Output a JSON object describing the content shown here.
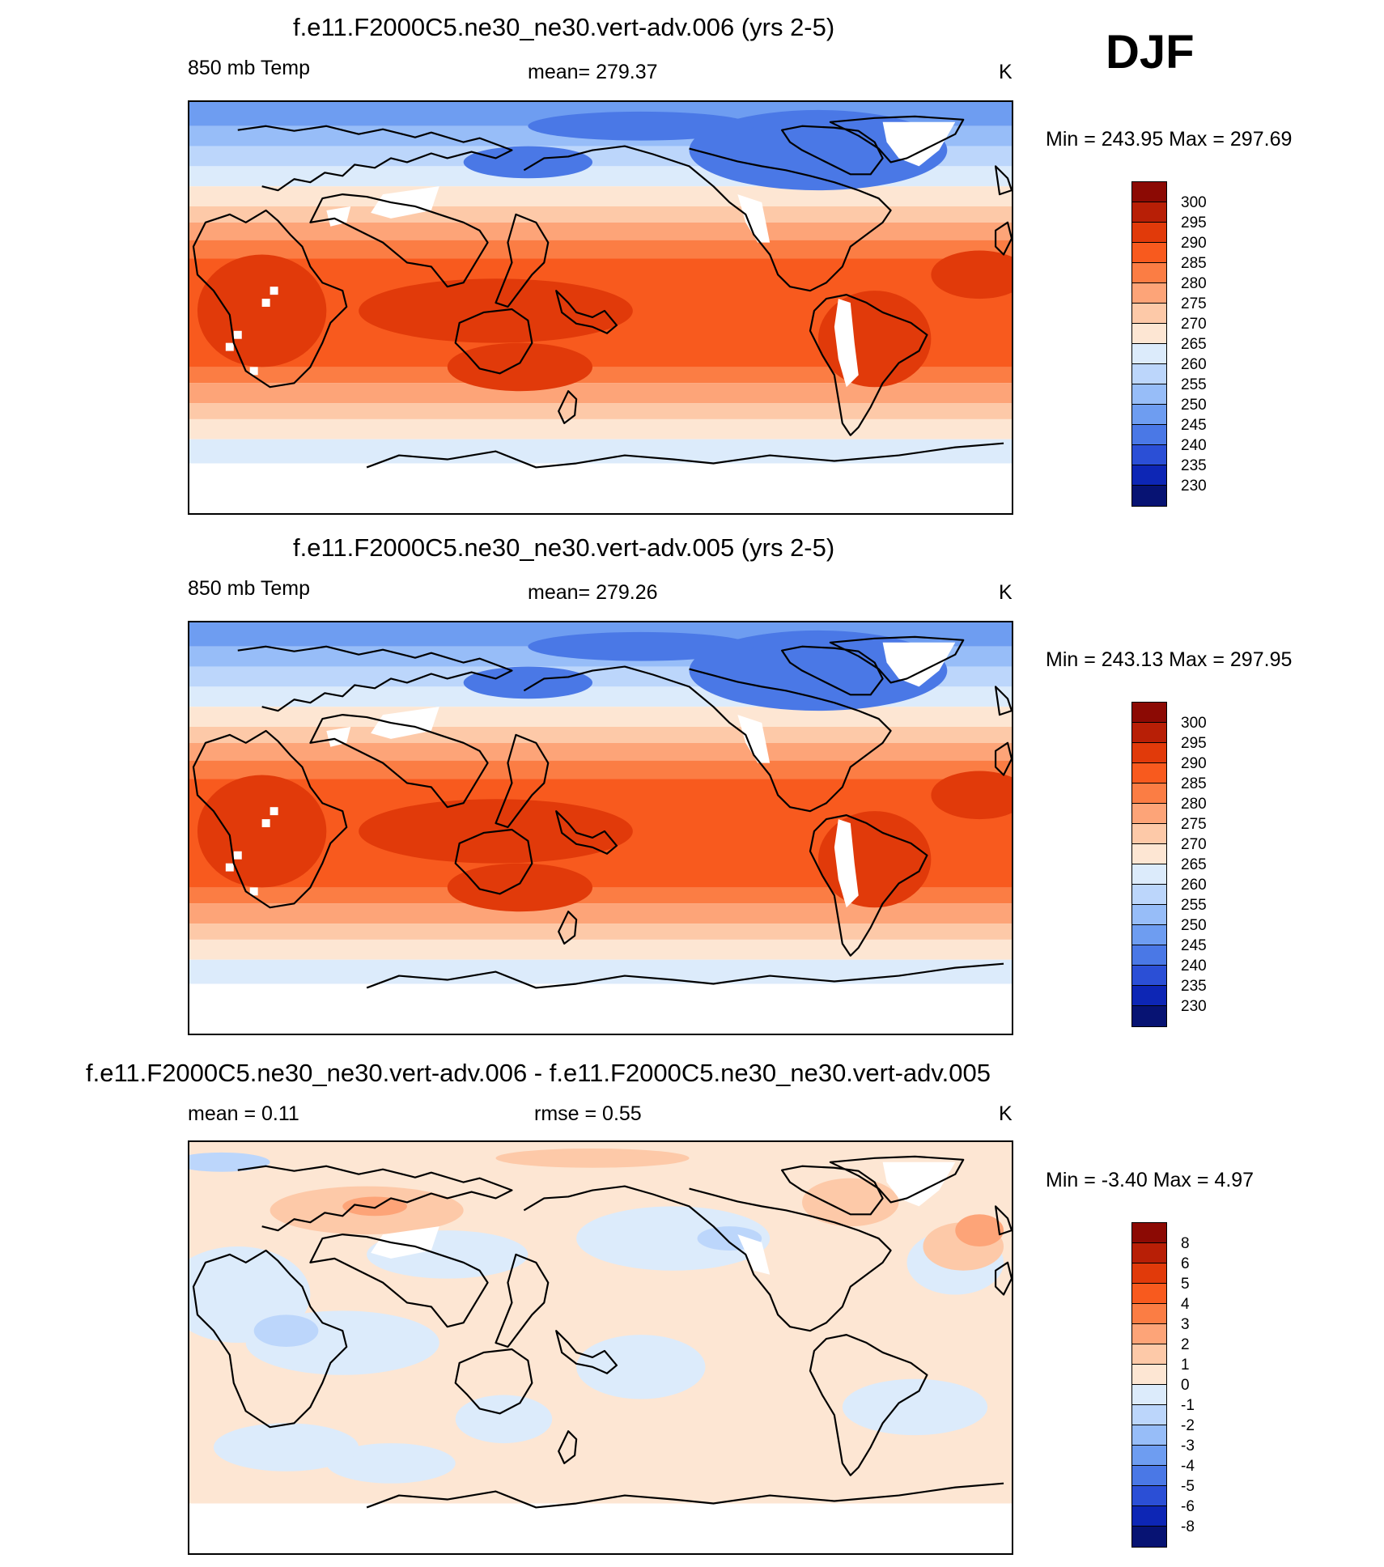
{
  "season": "DJF",
  "panels": [
    {
      "id": "p1",
      "title": "f.e11.F2000C5.ne30_ne30.vert-adv.006 (yrs 2-5)",
      "left_label": "850 mb Temp",
      "center_label": "mean= 279.37",
      "units": "K",
      "minmax": "Min = 243.95 Max = 297.69",
      "cbar_labels": [
        "300",
        "295",
        "290",
        "285",
        "280",
        "275",
        "270",
        "265",
        "260",
        "255",
        "250",
        "245",
        "240",
        "235",
        "230"
      ],
      "cbar_colors": [
        "#8c0a04",
        "#b81f06",
        "#e13a0a",
        "#f85a1e",
        "#fb7d44",
        "#fda478",
        "#fdc9a8",
        "#fde6d3",
        "#dcebfb",
        "#bcd6fb",
        "#97bdf8",
        "#6e9df1",
        "#4a78e6",
        "#2b4fd6",
        "#0d26b5",
        "#071373"
      ],
      "map_palette": "absolute"
    },
    {
      "id": "p2",
      "title": "f.e11.F2000C5.ne30_ne30.vert-adv.005 (yrs 2-5)",
      "left_label": "850 mb Temp",
      "center_label": "mean= 279.26",
      "units": "K",
      "minmax": "Min = 243.13 Max = 297.95",
      "cbar_labels": [
        "300",
        "295",
        "290",
        "285",
        "280",
        "275",
        "270",
        "265",
        "260",
        "255",
        "250",
        "245",
        "240",
        "235",
        "230"
      ],
      "cbar_colors": [
        "#8c0a04",
        "#b81f06",
        "#e13a0a",
        "#f85a1e",
        "#fb7d44",
        "#fda478",
        "#fdc9a8",
        "#fde6d3",
        "#dcebfb",
        "#bcd6fb",
        "#97bdf8",
        "#6e9df1",
        "#4a78e6",
        "#2b4fd6",
        "#0d26b5",
        "#071373"
      ],
      "map_palette": "absolute"
    },
    {
      "id": "p3",
      "title": "f.e11.F2000C5.ne30_ne30.vert-adv.006 - f.e11.F2000C5.ne30_ne30.vert-adv.005",
      "left_label": "mean =   0.11",
      "center_label": "rmse =   0.55",
      "units": "K",
      "minmax": "Min =  -3.40 Max =   4.97",
      "cbar_labels": [
        "8",
        "6",
        "5",
        "4",
        "3",
        "2",
        "1",
        "0",
        "-1",
        "-2",
        "-3",
        "-4",
        "-5",
        "-6",
        "-8"
      ],
      "cbar_colors": [
        "#8c0a04",
        "#b81f06",
        "#e13a0a",
        "#f85a1e",
        "#fb7d44",
        "#fda478",
        "#fdc9a8",
        "#fde6d3",
        "#dcebfb",
        "#bcd6fb",
        "#97bdf8",
        "#6e9df1",
        "#4a78e6",
        "#2b4fd6",
        "#0d26b5",
        "#071373"
      ],
      "map_palette": "difference"
    }
  ]
}
